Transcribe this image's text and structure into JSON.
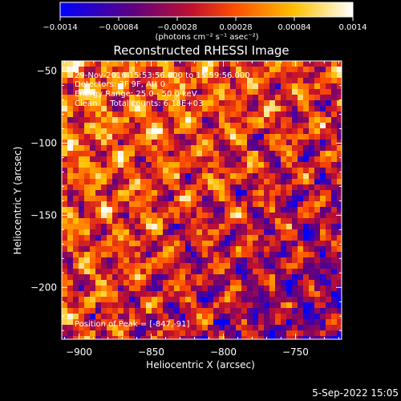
{
  "chart_data": {
    "type": "heatmap",
    "title": "Reconstructed RHESSI Image",
    "xlabel": "Heliocentric X (arcsec)",
    "ylabel": "Heliocentric Y (arcsec)",
    "xlim": [
      -912,
      -718
    ],
    "ylim": [
      -236,
      -43
    ],
    "x_ticks": [
      -900,
      -850,
      -800,
      -750
    ],
    "x_tick_labels": [
      "−900",
      "−850",
      "−800",
      "−750"
    ],
    "y_ticks": [
      -50,
      -100,
      -150,
      -200
    ],
    "y_tick_labels": [
      "−50",
      "−100",
      "−150",
      "−200"
    ],
    "colorbar": {
      "range": [
        -0.0014,
        0.0014
      ],
      "ticks": [
        -0.0014,
        -0.00084,
        -0.00028,
        0.00028,
        0.00084,
        0.0014
      ],
      "tick_labels": [
        "−0.0014",
        "−0.00084",
        "−0.00028",
        "0.00028",
        "0.00084",
        "0.0014"
      ],
      "unit_label": "(photons cm⁻² s⁻¹ asec⁻²)",
      "colors": [
        "#0000ff",
        "#600080",
        "#c01030",
        "#ff5000",
        "#ffc000",
        "#ffffff"
      ]
    },
    "peak_position": [
      -847,
      -91
    ],
    "annotations": [
      "29-Nov-2016 15:53:56.000 to 15:59:56.000",
      "Detectors: 3F 9F, Att 0",
      "Energy Range: 25.0 - 50.0 keV",
      "Clean     Total counts: 6.18E+03"
    ],
    "peak_label": "Position of Peak = [-847,-91]",
    "grid": false
  },
  "footer": {
    "date": "5-Sep-2022 15:05"
  }
}
